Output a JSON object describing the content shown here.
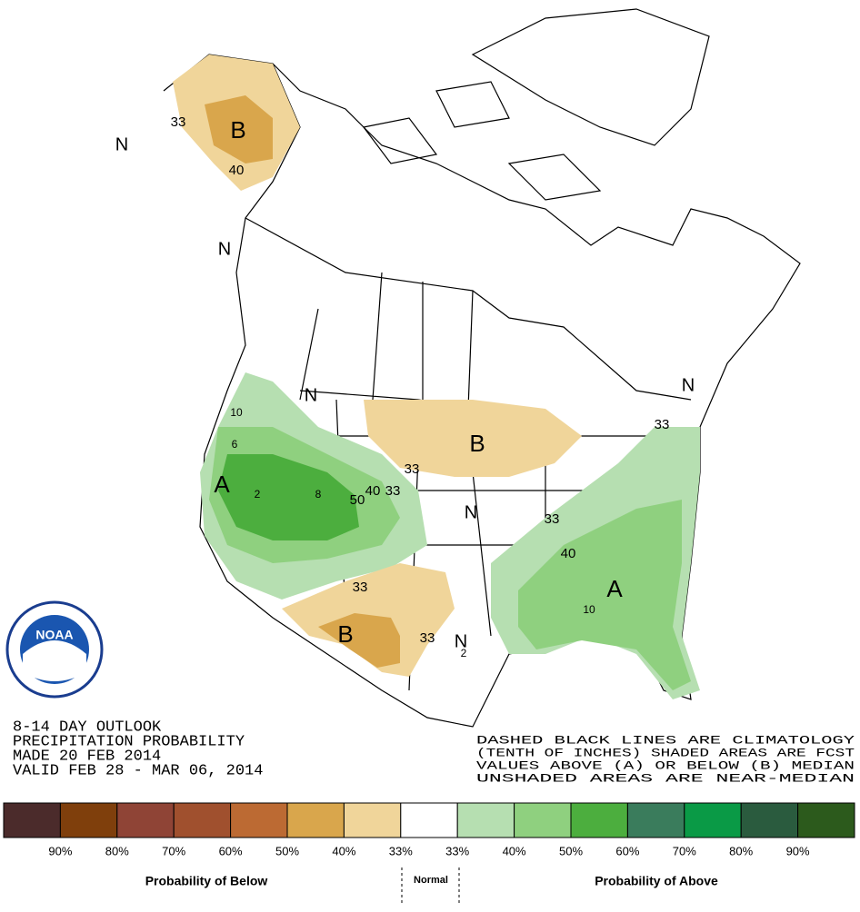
{
  "map": {
    "labels": [
      "B",
      "33",
      "40",
      "N",
      "N",
      "N",
      "A",
      "10",
      "6",
      "2",
      "8",
      "50",
      "40",
      "33",
      "33",
      "B",
      "N",
      "33",
      "40",
      "33",
      "N",
      "A",
      "10",
      "33",
      "B",
      "33",
      "N",
      "2"
    ],
    "logo": "NOAA"
  },
  "outlook": {
    "lines": [
      "8-14 DAY OUTLOOK",
      "PRECIPITATION PROBABILITY",
      "MADE  20 FEB 2014",
      "VALID  FEB 28 - MAR 06, 2014"
    ]
  },
  "notes": {
    "lines": [
      "DASHED BLACK LINES ARE CLIMATOLOGY",
      "(TENTH OF INCHES) SHADED AREAS ARE FCST",
      "VALUES ABOVE (A) OR BELOW (B) MEDIAN",
      "UNSHADED AREAS ARE NEAR-MEDIAN"
    ]
  },
  "legend": {
    "colors": [
      "#4b2b2b",
      "#7f3f0c",
      "#8f4436",
      "#a0502e",
      "#bc6a33",
      "#d9a64c",
      "#f0d59a",
      "#ffffff",
      "#b6dfb1",
      "#8fd07f",
      "#4cae3e",
      "#3a7c5c",
      "#0a9a46",
      "#2a5b3e",
      "#2c5a1c"
    ],
    "labels": [
      "90%",
      "80%",
      "70%",
      "60%",
      "50%",
      "40%",
      "33%",
      "33%",
      "40%",
      "50%",
      "60%",
      "70%",
      "80%",
      "90%"
    ],
    "below": "Probability of Below",
    "normal": "Normal",
    "above": "Probability of Above"
  }
}
